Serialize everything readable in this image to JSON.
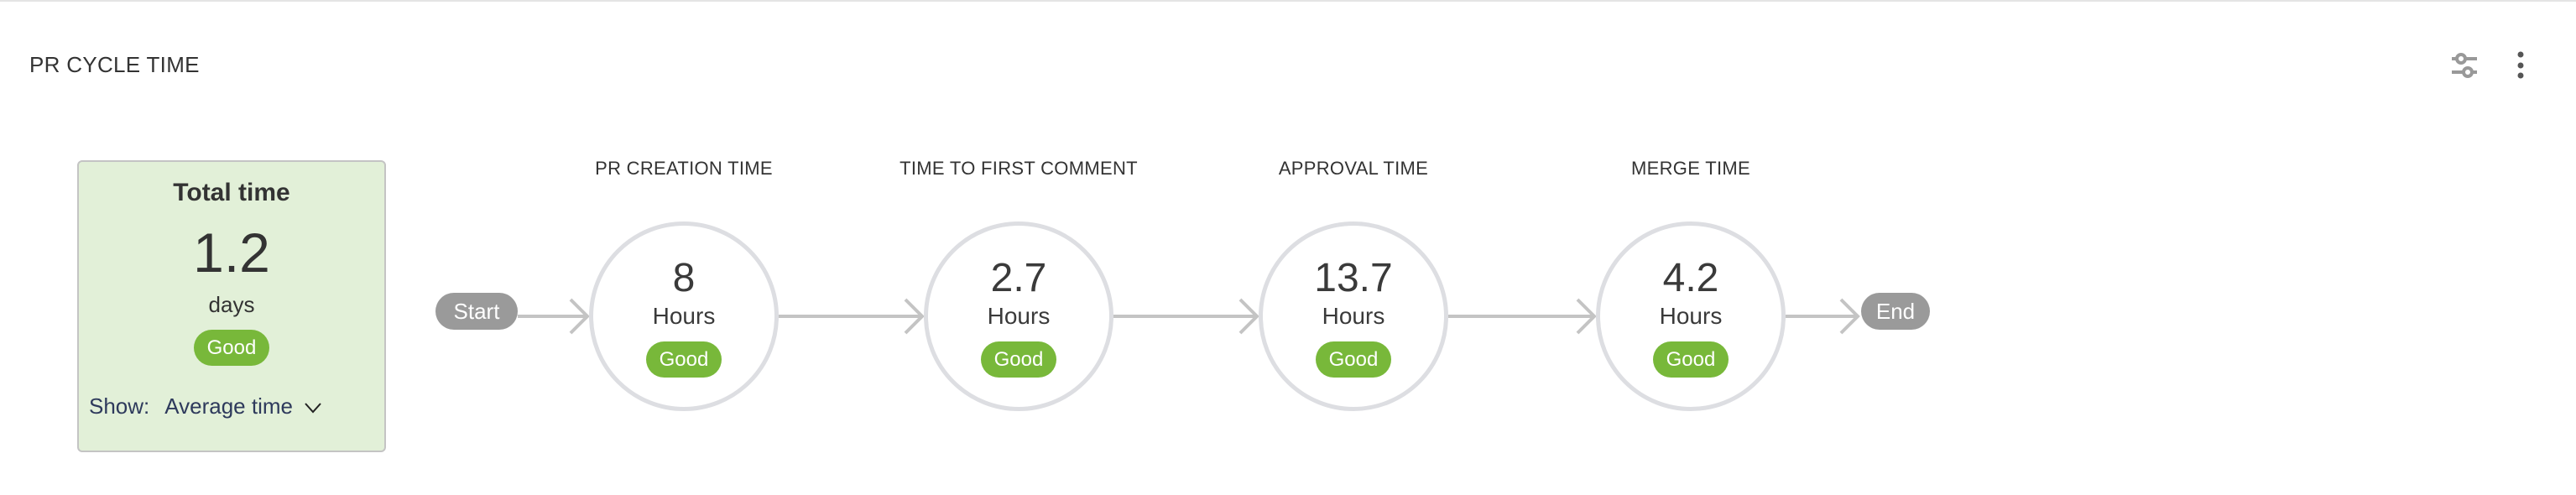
{
  "widget": {
    "title": "PR CYCLE TIME",
    "filter_icon": "sliders-icon",
    "menu_icon": "more-vertical-icon"
  },
  "total": {
    "label": "Total time",
    "value": "1.2",
    "unit": "days",
    "status": "Good",
    "show_label": "Show:",
    "show_value": "Average time",
    "status_color": "#78b83a",
    "background": "#e2f0d8"
  },
  "flow": {
    "start": "Start",
    "end": "End"
  },
  "stages": [
    {
      "label": "PR CREATION TIME",
      "value": "8",
      "unit": "Hours",
      "status": "Good"
    },
    {
      "label": "TIME TO FIRST COMMENT",
      "value": "2.7",
      "unit": "Hours",
      "status": "Good"
    },
    {
      "label": "APPROVAL TIME",
      "value": "13.7",
      "unit": "Hours",
      "status": "Good"
    },
    {
      "label": "MERGE TIME",
      "value": "4.2",
      "unit": "Hours",
      "status": "Good"
    }
  ]
}
